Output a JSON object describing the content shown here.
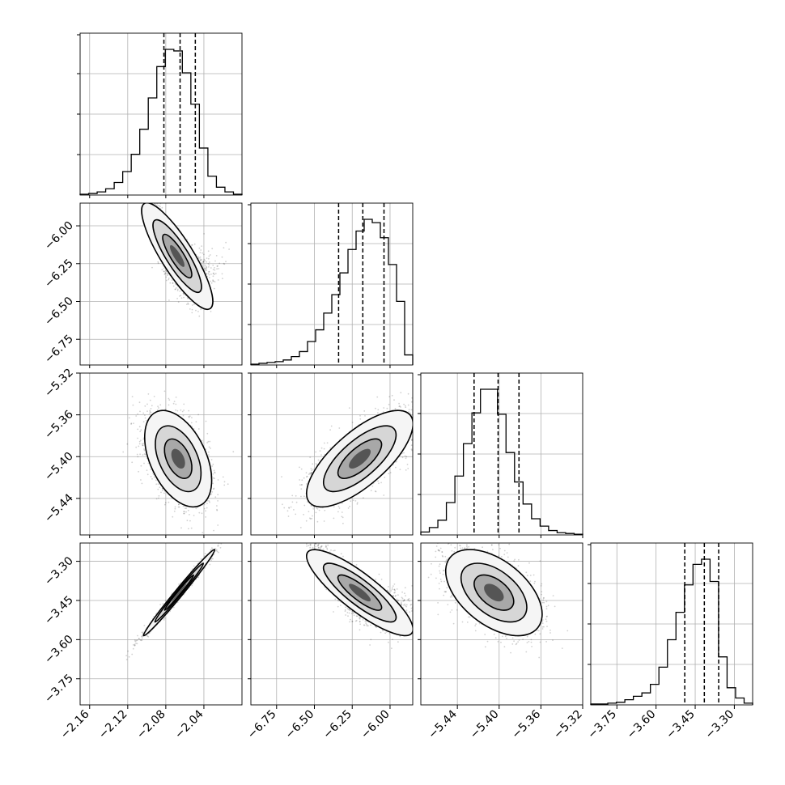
{
  "chart_data": {
    "type": "corner",
    "parameters": [
      {
        "range": [
          -2.17,
          -2.0
        ],
        "ticks": [
          -2.16,
          -2.12,
          -2.08,
          -2.04
        ],
        "tick_labels": [
          "−2.16",
          "−2.12",
          "−2.08",
          "−2.04"
        ],
        "quantiles": [
          -2.082,
          -2.065,
          -2.049
        ]
      },
      {
        "range": [
          -6.92,
          -5.85
        ],
        "ticks": [
          -6.75,
          -6.5,
          -6.25,
          -6.0
        ],
        "tick_labels": [
          "−6.75",
          "−6.50",
          "−6.25",
          "−6.00"
        ],
        "quantiles": [
          -6.34,
          -6.18,
          -6.04
        ]
      },
      {
        "range": [
          -5.475,
          -5.32
        ],
        "ticks": [
          -5.44,
          -5.4,
          -5.36,
          -5.32
        ],
        "tick_labels": [
          "−5.44",
          "−5.40",
          "−5.36",
          "−5.32"
        ],
        "quantiles": [
          -5.424,
          -5.401,
          -5.381
        ]
      },
      {
        "range": [
          -3.85,
          -3.23
        ],
        "ticks": [
          -3.75,
          -3.6,
          -3.45,
          -3.3
        ],
        "tick_labels": [
          "−3.75",
          "−3.60",
          "−3.45",
          "−3.30"
        ],
        "quantiles": [
          -3.49,
          -3.415,
          -3.36
        ]
      }
    ],
    "histograms": [
      {
        "counts": [
          0.5,
          1,
          2,
          4,
          8,
          15,
          26,
          42,
          62,
          82,
          93,
          92,
          78,
          58,
          30,
          12,
          5,
          2,
          0.5
        ]
      },
      {
        "counts": [
          0.5,
          1,
          1.5,
          2,
          3,
          5,
          8,
          14,
          21,
          31,
          42,
          55,
          69,
          80,
          87,
          85,
          76,
          60,
          38,
          6
        ]
      },
      {
        "counts": [
          2,
          5,
          10,
          22,
          40,
          62,
          83,
          99,
          99,
          82,
          56,
          36,
          21,
          11,
          6,
          3,
          1.5,
          1,
          0.5
        ]
      },
      {
        "counts": [
          0.5,
          0.5,
          1,
          1.5,
          3,
          5,
          7,
          12,
          22,
          38,
          54,
          70,
          82,
          85,
          72,
          28,
          10,
          4,
          1
        ]
      }
    ],
    "pairs": [
      {
        "x": 0,
        "y": 1,
        "cx": -2.068,
        "cy": -6.2,
        "sx": 0.017,
        "sy": 0.16,
        "rho": -0.85,
        "curvature": 0.6
      },
      {
        "x": 0,
        "y": 2,
        "cx": -2.067,
        "cy": -5.402,
        "sx": 0.016,
        "sy": 0.021,
        "rho": -0.45,
        "curvature": 0
      },
      {
        "x": 1,
        "y": 2,
        "cx": -6.2,
        "cy": -5.402,
        "sx": 0.16,
        "sy": 0.021,
        "rho": 0.72,
        "curvature": 0
      },
      {
        "x": 0,
        "y": 3,
        "cx": -2.066,
        "cy": -3.42,
        "sx": 0.017,
        "sy": 0.075,
        "rho": 0.99,
        "curvature": 0
      },
      {
        "x": 1,
        "y": 3,
        "cx": -6.2,
        "cy": -3.42,
        "sx": 0.16,
        "sy": 0.075,
        "rho": -0.85,
        "curvature": 0.55
      },
      {
        "x": 2,
        "y": 3,
        "cx": -5.405,
        "cy": -3.42,
        "sx": 0.021,
        "sy": 0.075,
        "rho": -0.5,
        "curvature": 0
      }
    ],
    "grid": true,
    "quantile_lines": "dashed"
  }
}
